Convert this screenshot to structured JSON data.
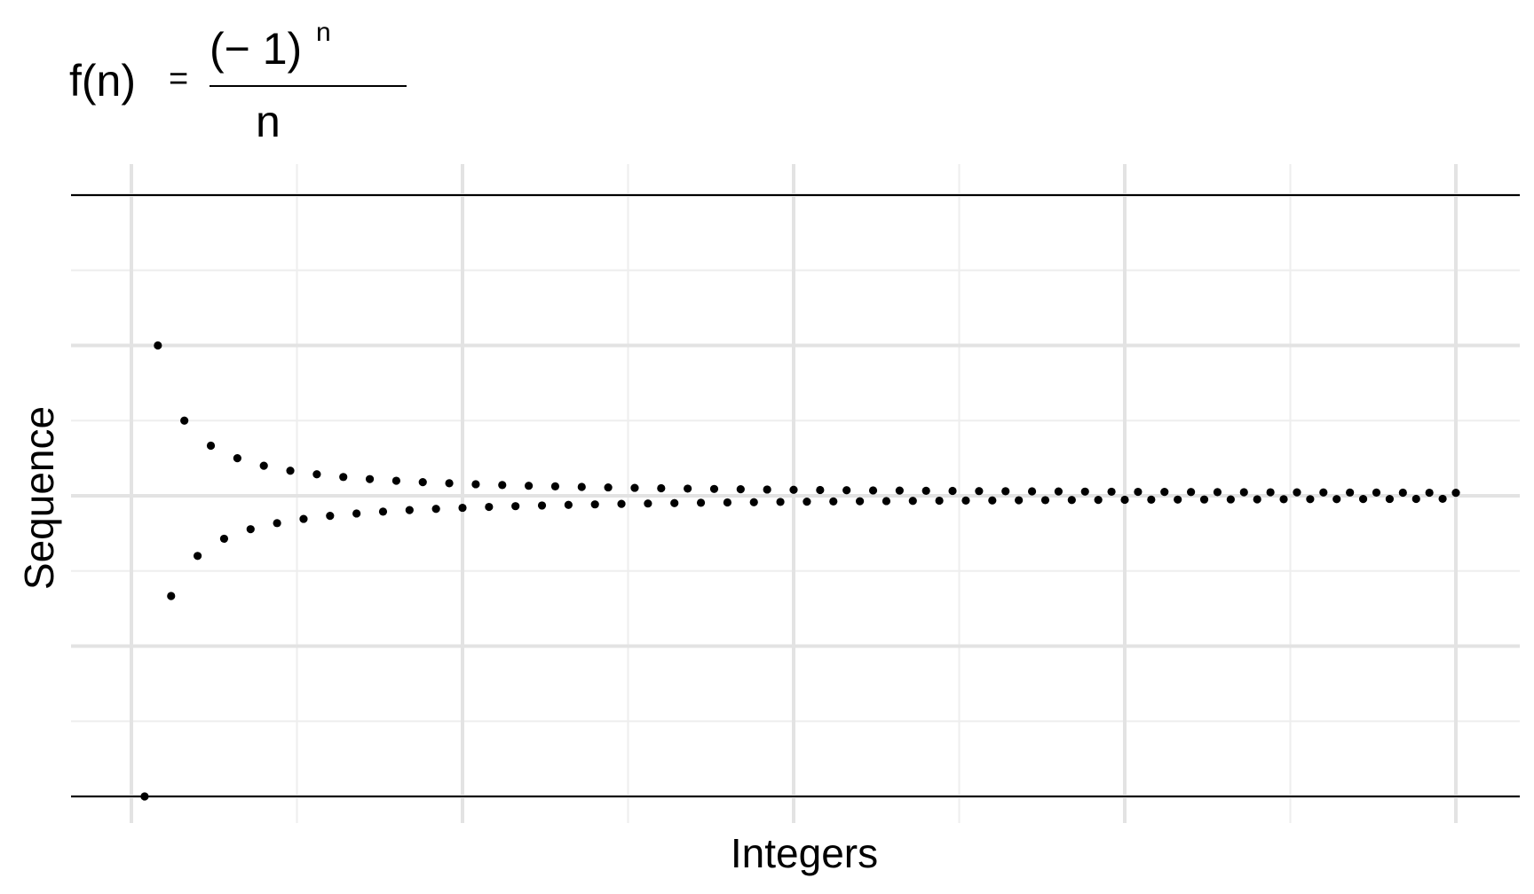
{
  "title": {
    "lhs": "f(n)",
    "equals": "=",
    "numerator_base": "(− 1)",
    "numerator_exp": "n",
    "denominator": "n"
  },
  "chart_data": {
    "type": "scatter",
    "title": "f(n) = (−1)^n / n",
    "xlabel": "Integers",
    "ylabel": "Sequence",
    "x_tick_labels_visible": false,
    "y_tick_labels_visible": false,
    "xlim": [
      -2.5,
      104.5
    ],
    "ylim": [
      -1.0,
      1.0
    ],
    "x_major_breaks": [
      0,
      25,
      50,
      75,
      100
    ],
    "x_minor_breaks": [
      12.5,
      37.5,
      62.5,
      87.5
    ],
    "y_major_breaks": [
      -1.0,
      -0.5,
      0,
      0.5,
      1.0
    ],
    "y_minor_breaks": [
      -0.75,
      -0.25,
      0.25,
      0.75
    ],
    "grid": true,
    "point_color": "#000000",
    "n_start": 1,
    "n_end": 100,
    "formula": "(-1)^n / n"
  },
  "colors": {
    "background": "#ffffff",
    "grid_major": "#e3e3e3",
    "grid_minor": "#eeeeee",
    "limit_line": "#000000",
    "points": "#000000"
  }
}
